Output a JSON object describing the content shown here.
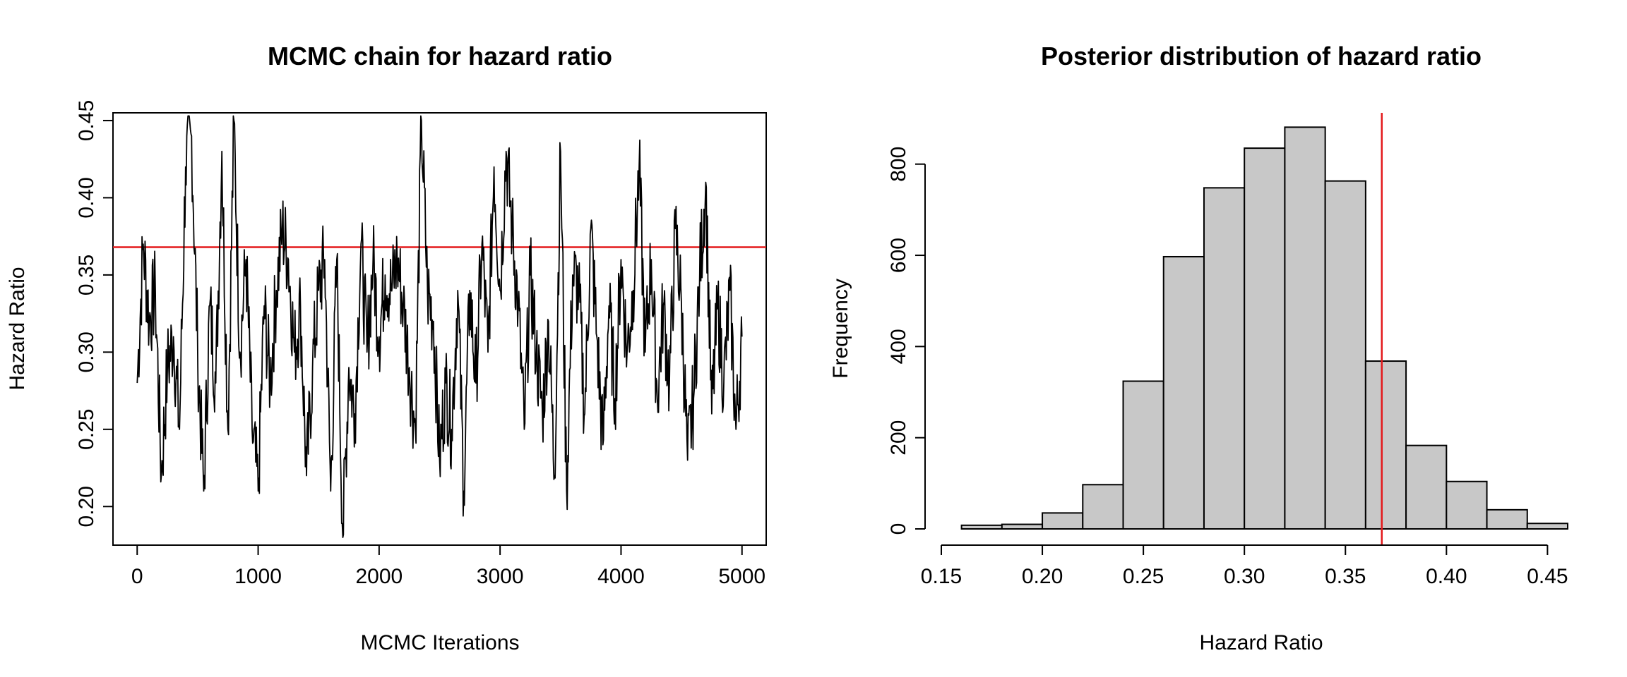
{
  "chart_data": [
    {
      "type": "line",
      "title": "MCMC chain for hazard ratio",
      "xlabel": "MCMC Iterations",
      "ylabel": "Hazard Ratio",
      "xlim": [
        -200,
        5200
      ],
      "ylim": [
        0.175,
        0.455
      ],
      "xticks": [
        0,
        1000,
        2000,
        3000,
        4000,
        5000
      ],
      "xtick_labels": [
        "0",
        "1000",
        "2000",
        "3000",
        "4000",
        "5000"
      ],
      "yticks": [
        0.2,
        0.25,
        0.3,
        0.35,
        0.4,
        0.45
      ],
      "ytick_labels": [
        "0.20",
        "0.25",
        "0.30",
        "0.35",
        "0.40",
        "0.45"
      ],
      "grid": false,
      "reference_line": {
        "y": 0.368,
        "color": "#e41a1c"
      },
      "line_color": "#000000",
      "series": [
        {
          "x": [
            0,
            50,
            100,
            150,
            200,
            250,
            300,
            350,
            400,
            450,
            500,
            550,
            600,
            650,
            700,
            750,
            800,
            850,
            900,
            950,
            1000,
            1050,
            1100,
            1150,
            1200,
            1250,
            1300,
            1350,
            1400,
            1450,
            1500,
            1550,
            1600,
            1650,
            1700,
            1750,
            1800,
            1850,
            1900,
            1950,
            2000,
            2050,
            2100,
            2150,
            2200,
            2250,
            2300,
            2350,
            2400,
            2450,
            2500,
            2550,
            2600,
            2650,
            2700,
            2750,
            2800,
            2850,
            2900,
            2950,
            3000,
            3050,
            3100,
            3150,
            3200,
            3250,
            3300,
            3350,
            3400,
            3450,
            3500,
            3550,
            3600,
            3650,
            3700,
            3750,
            3800,
            3850,
            3900,
            3950,
            4000,
            4050,
            4100,
            4150,
            4200,
            4250,
            4300,
            4350,
            4400,
            4450,
            4500,
            4550,
            4600,
            4650,
            4700,
            4750,
            4800,
            4850,
            4900,
            4950,
            5000
          ],
          "y": [
            0.28,
            0.37,
            0.32,
            0.34,
            0.22,
            0.29,
            0.31,
            0.25,
            0.42,
            0.44,
            0.3,
            0.21,
            0.33,
            0.28,
            0.43,
            0.25,
            0.45,
            0.3,
            0.36,
            0.25,
            0.21,
            0.33,
            0.28,
            0.34,
            0.38,
            0.36,
            0.3,
            0.33,
            0.22,
            0.29,
            0.34,
            0.36,
            0.21,
            0.36,
            0.18,
            0.29,
            0.26,
            0.37,
            0.3,
            0.36,
            0.31,
            0.35,
            0.34,
            0.36,
            0.33,
            0.29,
            0.25,
            0.45,
            0.34,
            0.32,
            0.23,
            0.28,
            0.25,
            0.34,
            0.21,
            0.34,
            0.28,
            0.37,
            0.3,
            0.42,
            0.34,
            0.43,
            0.38,
            0.33,
            0.25,
            0.35,
            0.3,
            0.26,
            0.32,
            0.22,
            0.43,
            0.21,
            0.35,
            0.34,
            0.26,
            0.38,
            0.31,
            0.24,
            0.33,
            0.27,
            0.36,
            0.3,
            0.34,
            0.42,
            0.3,
            0.36,
            0.27,
            0.33,
            0.28,
            0.38,
            0.33,
            0.23,
            0.27,
            0.35,
            0.41,
            0.26,
            0.33,
            0.28,
            0.34,
            0.25,
            0.31
          ]
        }
      ]
    },
    {
      "type": "bar",
      "title": "Posterior distribution of hazard ratio",
      "xlabel": "Hazard Ratio",
      "ylabel": "Frequency",
      "xlim": [
        0.15,
        0.46
      ],
      "ylim": [
        0,
        880
      ],
      "xticks": [
        0.15,
        0.2,
        0.25,
        0.3,
        0.35,
        0.4,
        0.45
      ],
      "xtick_labels": [
        "0.15",
        "0.20",
        "0.25",
        "0.30",
        "0.35",
        "0.40",
        "0.45"
      ],
      "yticks": [
        0,
        200,
        400,
        600,
        800
      ],
      "ytick_labels": [
        "0",
        "200",
        "400",
        "600",
        "800"
      ],
      "grid": false,
      "bar_color": "#c8c8c8",
      "reference_line": {
        "x": 0.368,
        "color": "#e41a1c"
      },
      "bins": [
        {
          "x0": 0.16,
          "x1": 0.18,
          "count": 8
        },
        {
          "x0": 0.18,
          "x1": 0.2,
          "count": 10
        },
        {
          "x0": 0.2,
          "x1": 0.22,
          "count": 35
        },
        {
          "x0": 0.22,
          "x1": 0.24,
          "count": 97
        },
        {
          "x0": 0.24,
          "x1": 0.26,
          "count": 324
        },
        {
          "x0": 0.26,
          "x1": 0.28,
          "count": 597
        },
        {
          "x0": 0.28,
          "x1": 0.3,
          "count": 748
        },
        {
          "x0": 0.3,
          "x1": 0.32,
          "count": 835
        },
        {
          "x0": 0.32,
          "x1": 0.34,
          "count": 881
        },
        {
          "x0": 0.34,
          "x1": 0.36,
          "count": 763
        },
        {
          "x0": 0.36,
          "x1": 0.38,
          "count": 368
        },
        {
          "x0": 0.38,
          "x1": 0.4,
          "count": 183
        },
        {
          "x0": 0.4,
          "x1": 0.42,
          "count": 104
        },
        {
          "x0": 0.42,
          "x1": 0.44,
          "count": 42
        },
        {
          "x0": 0.44,
          "x1": 0.46,
          "count": 12
        }
      ]
    }
  ]
}
